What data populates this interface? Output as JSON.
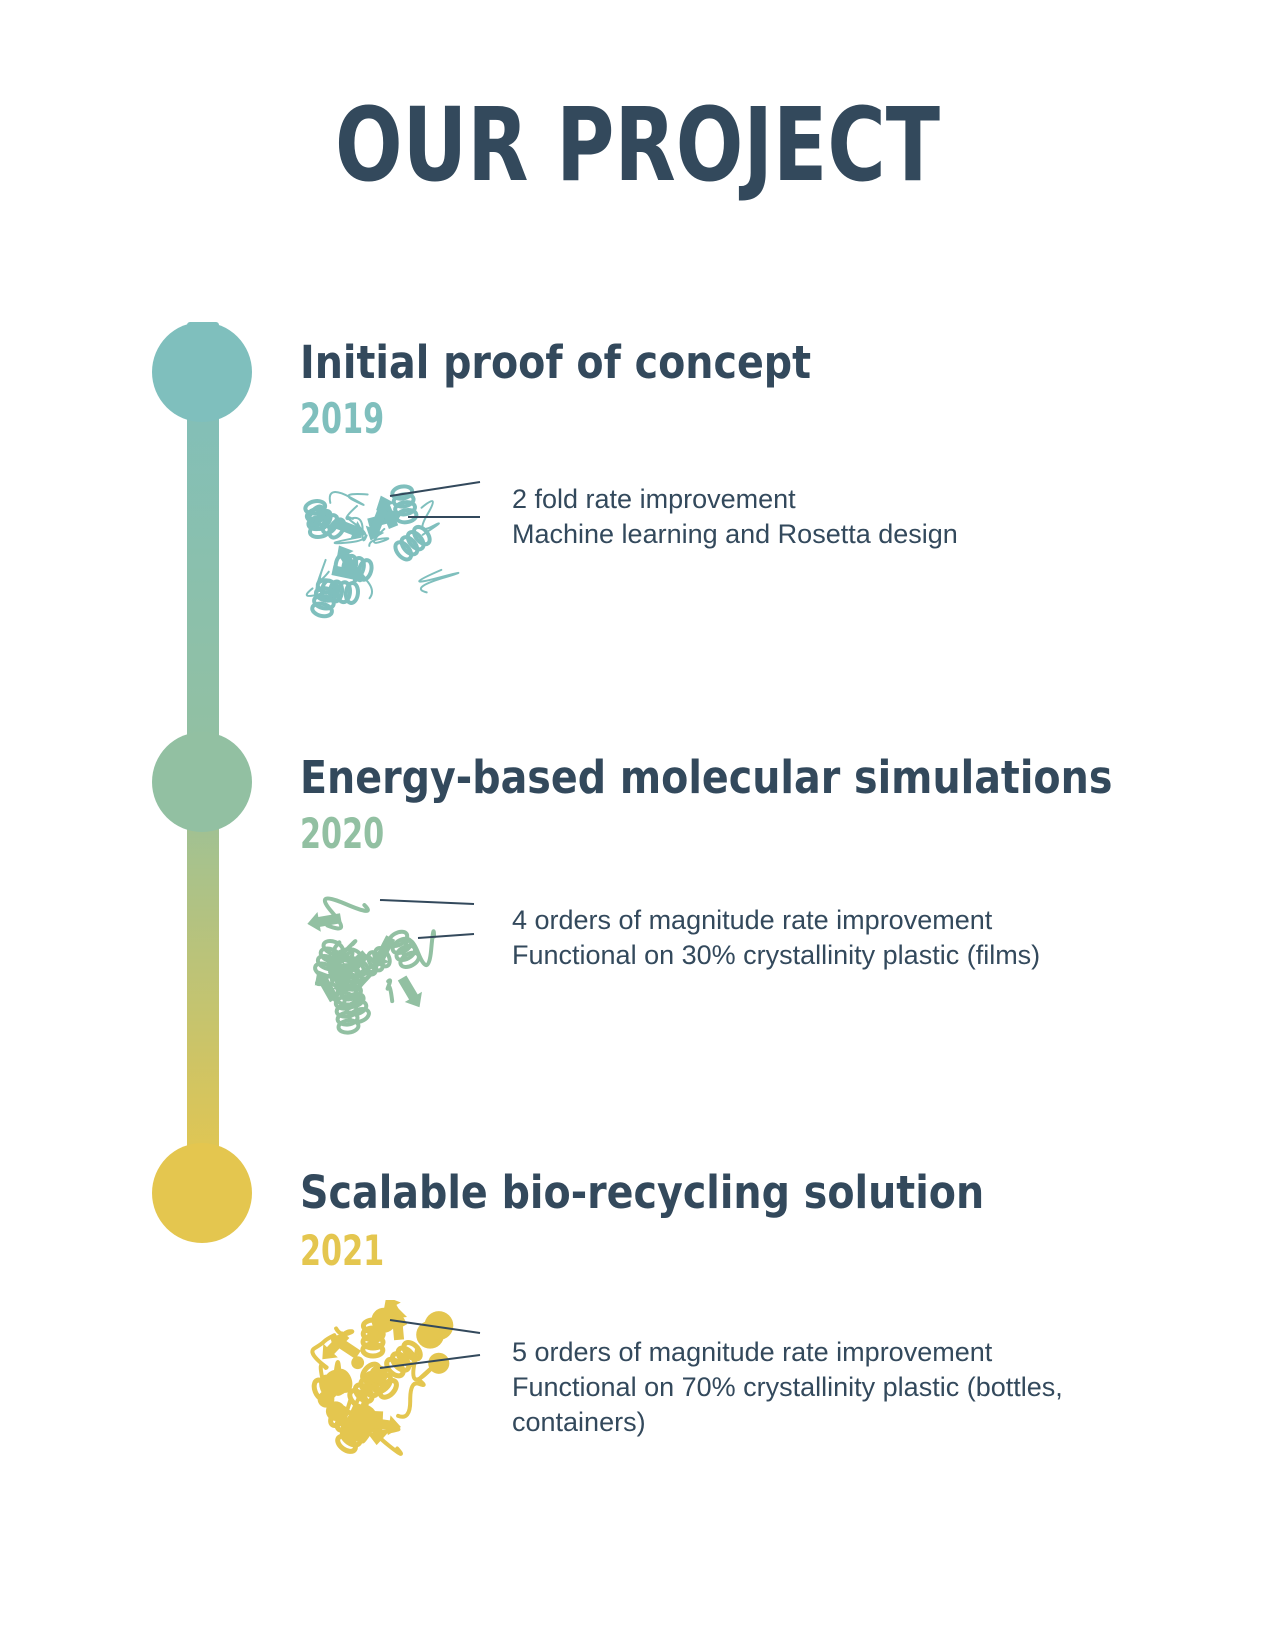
{
  "title": "OUR PROJECT",
  "colors": {
    "heading": "#33495c",
    "teal": "#7fbfbd",
    "sage": "#92c0a2",
    "gold": "#e4c64f"
  },
  "milestones": [
    {
      "title": "Initial proof of concept",
      "year": "2019",
      "color": "#7fbfbd",
      "illustration": "protein-ribbon-outline-icon",
      "bullets": [
        "2 fold rate improvement",
        "Machine learning and Rosetta design"
      ]
    },
    {
      "title": "Energy-based molecular simulations",
      "year": "2020",
      "color": "#92c0a2",
      "illustration": "protein-ribbon-icon",
      "bullets": [
        "4 orders of magnitude rate improvement",
        "Functional on 30% crystallinity plastic (films)"
      ]
    },
    {
      "title": "Scalable bio-recycling solution",
      "year": "2021",
      "color": "#e4c64f",
      "illustration": "protein-ribbon-solid-icon",
      "bullets": [
        "5 orders of magnitude rate improvement",
        "Functional on 70% crystallinity plastic (bottles,",
        "containers)"
      ]
    }
  ]
}
